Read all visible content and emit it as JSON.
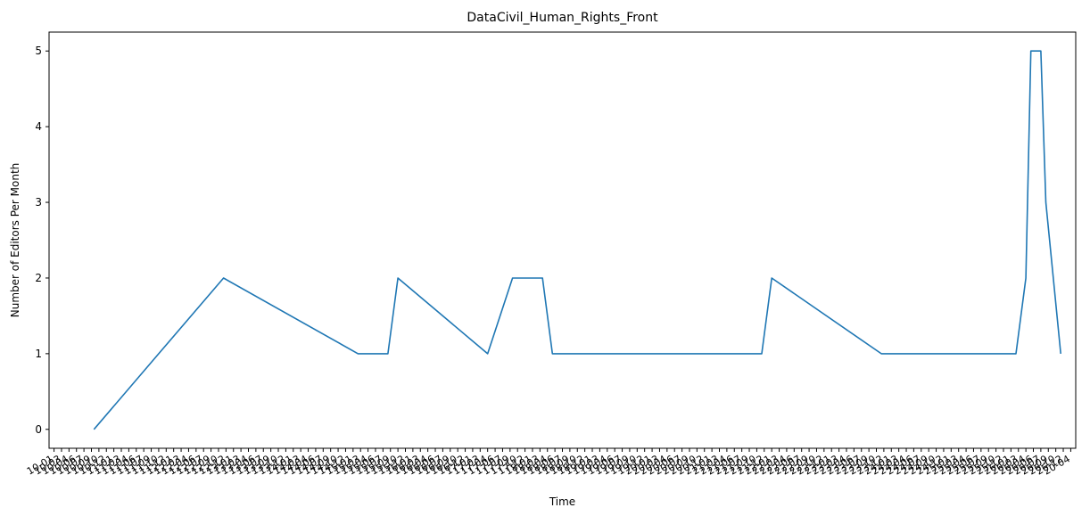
{
  "chart_data": {
    "type": "line",
    "title": "DataCivil_Human_Rights_Front",
    "xlabel": "Time",
    "ylabel": "Number of Editors Per Month",
    "ylim": [
      -0.25,
      5.25
    ],
    "yticks": [
      0,
      1,
      2,
      3,
      4,
      5
    ],
    "x_range_months": [
      1,
      198
    ],
    "grid": false,
    "legend": "none",
    "colors": {
      "line": "#1f77b4",
      "axis": "#000000",
      "background": "#ffffff"
    },
    "first_tick_label": "10-01",
    "last_tick_label": "20-04",
    "series": [
      {
        "x": [
          9,
          22,
          35,
          62,
          68,
          70,
          88,
          93,
          99,
          101,
          143,
          145,
          167,
          194,
          196,
          197,
          198,
          199,
          200,
          203
        ],
        "y": [
          0,
          1,
          2,
          1,
          1,
          2,
          1,
          2,
          2,
          1,
          1,
          2,
          1,
          1,
          2,
          5,
          5,
          5,
          3,
          1
        ]
      }
    ]
  }
}
